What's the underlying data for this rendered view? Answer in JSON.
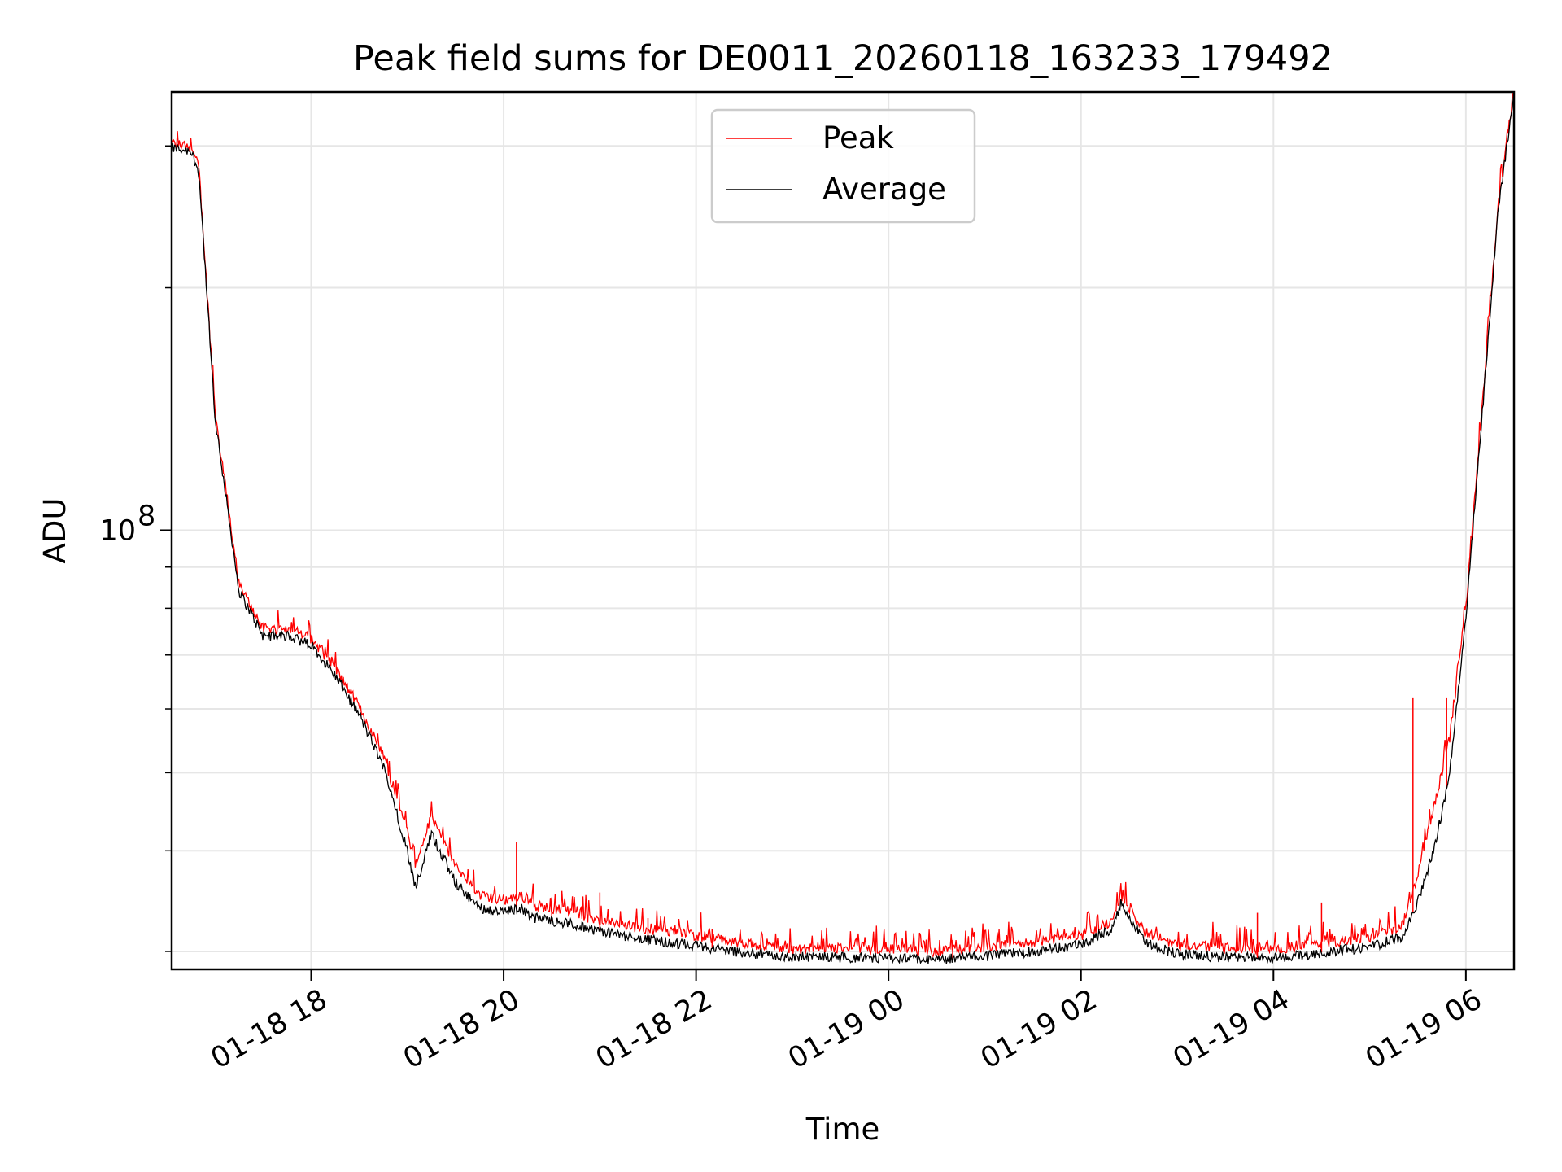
{
  "chart_data": {
    "type": "line",
    "title": "Peak field sums for DE0011_20260118_163233_179492",
    "xlabel": "Time",
    "ylabel": "ADU",
    "x_scale": "time",
    "y_scale": "log",
    "xlim": [
      "2026-01-18 16:33",
      "2026-01-19 06:30"
    ],
    "ylim": [
      28500000,
      350000000
    ],
    "grid": true,
    "legend": "upper center",
    "x_ticks": [
      "01-18 18",
      "01-18 20",
      "01-18 22",
      "01-19 00",
      "01-19 02",
      "01-19 04",
      "01-19 06"
    ],
    "y_ticks": [
      {
        "label": "10",
        "exponent": "8",
        "value": 100000000
      }
    ],
    "series": [
      {
        "name": "Peak",
        "color": "#ff0000",
        "x": [
          "2026-01-18 16:33",
          "2026-01-18 16:45",
          "2026-01-18 16:50",
          "2026-01-18 17:00",
          "2026-01-18 17:15",
          "2026-01-18 17:30",
          "2026-01-18 17:45",
          "2026-01-18 18:00",
          "2026-01-18 18:15",
          "2026-01-18 18:30",
          "2026-01-18 18:45",
          "2026-01-18 19:00",
          "2026-01-18 19:05",
          "2026-01-18 19:15",
          "2026-01-18 19:30",
          "2026-01-18 19:45",
          "2026-01-18 20:00",
          "2026-01-18 20:10",
          "2026-01-18 20:20",
          "2026-01-18 20:40",
          "2026-01-18 21:00",
          "2026-01-18 21:30",
          "2026-01-18 22:00",
          "2026-01-18 22:30",
          "2026-01-18 23:00",
          "2026-01-18 23:30",
          "2026-01-19 00:00",
          "2026-01-19 00:30",
          "2026-01-19 01:00",
          "2026-01-19 01:30",
          "2026-01-19 02:00",
          "2026-01-19 02:20",
          "2026-01-19 02:25",
          "2026-01-19 02:40",
          "2026-01-19 03:00",
          "2026-01-19 03:30",
          "2026-01-19 04:00",
          "2026-01-19 04:30",
          "2026-01-19 05:00",
          "2026-01-19 05:20",
          "2026-01-19 05:30",
          "2026-01-19 05:40",
          "2026-01-19 05:50",
          "2026-01-19 06:00",
          "2026-01-19 06:10",
          "2026-01-19 06:20",
          "2026-01-19 06:30"
        ],
        "values": [
          300000000,
          298000000,
          280000000,
          140000000,
          85000000,
          75000000,
          75000000,
          73000000,
          67000000,
          60000000,
          52000000,
          42000000,
          38000000,
          44000000,
          38000000,
          35000000,
          34500000,
          35000000,
          34000000,
          33500000,
          32500000,
          31800000,
          31200000,
          30500000,
          30000000,
          30100000,
          30000000,
          29800000,
          30200000,
          30600000,
          31200000,
          32500000,
          35000000,
          31500000,
          30400000,
          30100000,
          30000000,
          30500000,
          31000000,
          32000000,
          37000000,
          45000000,
          55000000,
          80000000,
          140000000,
          250000000,
          350000000
        ],
        "spikes": [
          {
            "x": "2026-01-18 20:08",
            "y": 41000000
          },
          {
            "x": "2026-01-18 20:30",
            "y": 35000000
          },
          {
            "x": "2026-01-18 21:00",
            "y": 35500000
          },
          {
            "x": "2026-01-18 21:30",
            "y": 33000000
          },
          {
            "x": "2026-01-18 22:10",
            "y": 32000000
          },
          {
            "x": "2026-01-19 00:40",
            "y": 31000000
          },
          {
            "x": "2026-01-19 03:50",
            "y": 33500000
          },
          {
            "x": "2026-01-19 04:30",
            "y": 34500000
          },
          {
            "x": "2026-01-19 05:27",
            "y": 62000000
          },
          {
            "x": "2026-01-19 05:48",
            "y": 62000000
          }
        ]
      },
      {
        "name": "Average",
        "color": "#000000",
        "x": [
          "2026-01-18 16:33",
          "2026-01-18 16:45",
          "2026-01-18 16:50",
          "2026-01-18 17:00",
          "2026-01-18 17:15",
          "2026-01-18 17:30",
          "2026-01-18 17:45",
          "2026-01-18 18:00",
          "2026-01-18 18:15",
          "2026-01-18 18:30",
          "2026-01-18 18:45",
          "2026-01-18 19:00",
          "2026-01-18 19:05",
          "2026-01-18 19:15",
          "2026-01-18 19:30",
          "2026-01-18 19:45",
          "2026-01-18 20:00",
          "2026-01-18 20:10",
          "2026-01-18 20:20",
          "2026-01-18 20:40",
          "2026-01-18 21:00",
          "2026-01-18 21:30",
          "2026-01-18 22:00",
          "2026-01-18 22:30",
          "2026-01-18 23:00",
          "2026-01-18 23:30",
          "2026-01-19 00:00",
          "2026-01-19 00:30",
          "2026-01-19 01:00",
          "2026-01-19 01:30",
          "2026-01-19 02:00",
          "2026-01-19 02:20",
          "2026-01-19 02:25",
          "2026-01-19 02:40",
          "2026-01-19 03:00",
          "2026-01-19 03:30",
          "2026-01-19 04:00",
          "2026-01-19 04:30",
          "2026-01-19 05:00",
          "2026-01-19 05:20",
          "2026-01-19 05:30",
          "2026-01-19 05:40",
          "2026-01-19 05:50",
          "2026-01-19 06:00",
          "2026-01-19 06:10",
          "2026-01-19 06:20",
          "2026-01-19 06:30"
        ],
        "values": [
          298000000,
          296000000,
          278000000,
          138000000,
          84000000,
          74000000,
          74000000,
          72000000,
          66000000,
          59000000,
          51000000,
          40000000,
          36000000,
          42000000,
          36500000,
          34000000,
          33500000,
          34000000,
          33000000,
          32500000,
          31800000,
          31000000,
          30500000,
          29900000,
          29500000,
          29500000,
          29400000,
          29300000,
          29600000,
          30000000,
          30600000,
          32000000,
          34500000,
          30800000,
          29800000,
          29500000,
          29400000,
          29900000,
          30400000,
          31300000,
          34500000,
          40000000,
          50000000,
          78000000,
          138000000,
          248000000,
          350000000
        ]
      }
    ]
  }
}
